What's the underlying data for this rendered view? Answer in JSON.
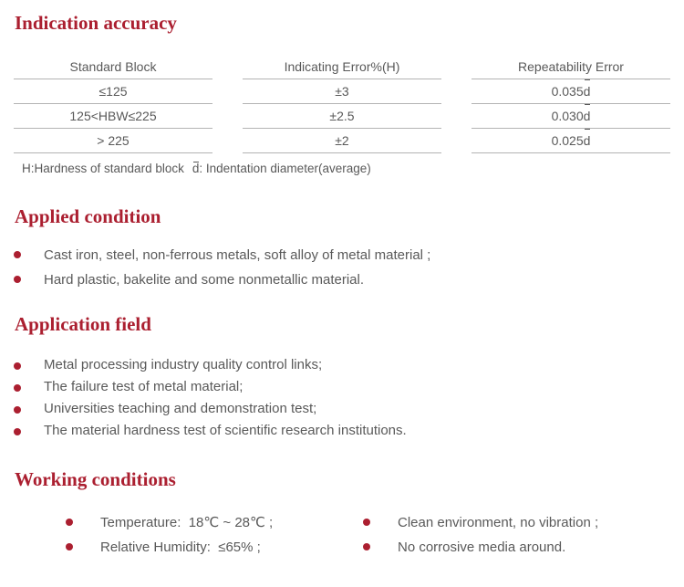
{
  "theme": {
    "accent": "#ab1f30",
    "body_text": "#595959",
    "table_line": "#b3b3b3"
  },
  "accuracy": {
    "heading": "Indication accuracy",
    "table": {
      "headers": [
        "Standard Block",
        "Indicating Error%(H)",
        "Repeatability Error"
      ],
      "rows": [
        {
          "block": "≤125",
          "error": "±3",
          "repeat_num": "0.035",
          "repeat_d": "d"
        },
        {
          "block": "125<HBW≤225",
          "error": "±2.5",
          "repeat_num": "0.030",
          "repeat_d": "d"
        },
        {
          "block": "> 225",
          "error": "±2",
          "repeat_num": "0.025",
          "repeat_d": "d"
        }
      ]
    },
    "note": {
      "h_part": "H:Hardness of standard block",
      "d_char": "d",
      "d_part": ": Indentation diameter(average)"
    }
  },
  "applied_condition": {
    "heading": "Applied condition",
    "items": [
      "Cast iron, steel, non-ferrous metals, soft alloy of metal material ;",
      "Hard plastic, bakelite and some nonmetallic material."
    ]
  },
  "application_field": {
    "heading": "Application field",
    "items": [
      "Metal processing industry quality control links;",
      "The failure test of metal material;",
      "Universities teaching and demonstration test;",
      "The material hardness test of scientific research institutions."
    ]
  },
  "working_conditions": {
    "heading": "Working conditions",
    "left_items": [
      "Temperature:  18℃ ~ 28℃ ;",
      "Relative Humidity:  ≤65% ;"
    ],
    "right_items": [
      "Clean environment, no vibration ;",
      "No corrosive media around."
    ]
  }
}
